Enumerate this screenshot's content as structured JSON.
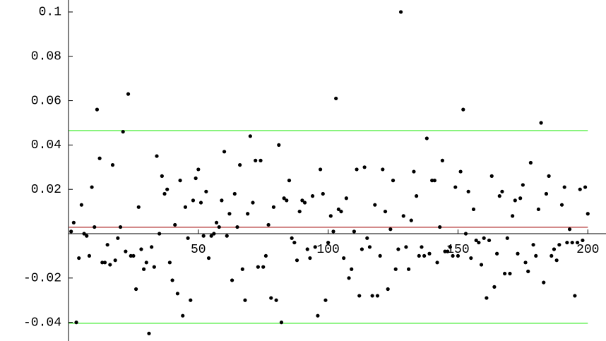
{
  "chart_data": {
    "type": "scatter",
    "x": [
      1,
      2,
      3,
      4,
      5,
      6,
      7,
      8,
      9,
      10,
      11,
      12,
      13,
      14,
      15,
      16,
      17,
      18,
      19,
      20,
      21,
      22,
      23,
      24,
      25,
      26,
      27,
      28,
      29,
      30,
      31,
      32,
      33,
      34,
      35,
      36,
      37,
      38,
      39,
      40,
      41,
      42,
      43,
      44,
      45,
      46,
      47,
      48,
      49,
      50,
      51,
      52,
      53,
      54,
      55,
      56,
      57,
      58,
      59,
      60,
      61,
      62,
      63,
      64,
      65,
      66,
      67,
      68,
      69,
      70,
      71,
      72,
      73,
      74,
      75,
      76,
      77,
      78,
      79,
      80,
      81,
      82,
      83,
      84,
      85,
      86,
      87,
      88,
      89,
      90,
      91,
      92,
      93,
      94,
      95,
      96,
      97,
      98,
      99,
      100,
      101,
      102,
      103,
      104,
      105,
      106,
      107,
      108,
      109,
      110,
      111,
      112,
      113,
      114,
      115,
      116,
      117,
      118,
      119,
      120,
      121,
      122,
      123,
      124,
      125,
      126,
      127,
      128,
      129,
      130,
      131,
      132,
      133,
      134,
      135,
      136,
      137,
      138,
      139,
      140,
      141,
      142,
      143,
      144,
      145,
      146,
      147,
      148,
      149,
      150,
      151,
      152,
      153,
      154,
      155,
      156,
      157,
      158,
      159,
      160,
      161,
      162,
      163,
      164,
      165,
      166,
      167,
      168,
      169,
      170,
      171,
      172,
      173,
      174,
      175,
      176,
      177,
      178,
      179,
      180,
      181,
      182,
      183,
      184,
      185,
      186,
      187,
      188,
      189,
      190,
      191,
      192,
      193,
      194,
      195,
      196,
      197,
      198,
      199,
      200
    ],
    "values": [
      0.001,
      0.005,
      -0.04,
      -0.011,
      0.013,
      0.0,
      -0.001,
      -0.01,
      0.021,
      0.003,
      0.056,
      0.034,
      -0.013,
      -0.013,
      -0.005,
      -0.014,
      0.031,
      -0.012,
      -0.002,
      0.003,
      0.046,
      -0.008,
      0.063,
      -0.01,
      -0.01,
      -0.025,
      0.012,
      -0.007,
      -0.016,
      -0.013,
      -0.045,
      -0.006,
      -0.015,
      0.035,
      0.0,
      0.026,
      0.018,
      0.02,
      -0.013,
      -0.021,
      0.004,
      -0.027,
      0.024,
      -0.037,
      0.012,
      -0.002,
      -0.03,
      0.015,
      0.025,
      0.029,
      0.014,
      -0.001,
      0.019,
      -0.011,
      -0.001,
      0.0,
      0.005,
      0.003,
      0.015,
      0.037,
      -0.001,
      0.009,
      -0.021,
      0.018,
      0.003,
      0.031,
      -0.016,
      -0.03,
      0.009,
      0.044,
      0.014,
      0.033,
      -0.015,
      0.033,
      -0.015,
      -0.01,
      0.004,
      -0.029,
      0.012,
      -0.03,
      0.04,
      -0.04,
      0.016,
      0.015,
      0.024,
      -0.002,
      -0.004,
      -0.012,
      0.01,
      0.015,
      0.014,
      -0.007,
      -0.011,
      0.017,
      -0.006,
      -0.037,
      0.029,
      0.018,
      -0.03,
      -0.004,
      0.008,
      0.001,
      0.061,
      0.011,
      0.01,
      -0.011,
      0.016,
      -0.02,
      -0.016,
      0.001,
      0.029,
      -0.028,
      -0.007,
      0.03,
      -0.002,
      -0.006,
      -0.028,
      0.013,
      -0.028,
      -0.01,
      0.029,
      0.01,
      -0.025,
      0.002,
      0.024,
      -0.016,
      -0.007,
      0.1,
      0.008,
      -0.006,
      -0.016,
      0.006,
      0.028,
      0.017,
      -0.01,
      -0.006,
      -0.01,
      0.043,
      -0.009,
      0.024,
      0.024,
      -0.013,
      0.003,
      0.033,
      -0.008,
      -0.008,
      -0.006,
      -0.01,
      0.021,
      -0.01,
      0.028,
      0.056,
      0.0,
      0.019,
      -0.011,
      0.011,
      -0.003,
      -0.004,
      -0.014,
      -0.002,
      -0.029,
      -0.003,
      0.026,
      -0.024,
      -0.009,
      0.017,
      0.019,
      -0.018,
      -0.002,
      -0.018,
      0.008,
      0.015,
      -0.009,
      0.016,
      0.022,
      -0.013,
      -0.017,
      0.032,
      -0.005,
      -0.01,
      0.011,
      0.05,
      -0.022,
      0.018,
      0.026,
      -0.01,
      -0.007,
      -0.012,
      -0.005,
      0.013,
      0.021,
      -0.004,
      0.002,
      -0.004,
      -0.028,
      -0.004,
      0.02,
      -0.003,
      0.021,
      0.009
    ],
    "color": "#000000",
    "reference_lines": [
      {
        "value": 0.0465,
        "color": "#44ee33"
      },
      {
        "value": 0.0029,
        "color": "#b03030"
      },
      {
        "value": -0.0404,
        "color": "#44ee33"
      }
    ],
    "xlim": [
      0,
      207
    ],
    "ylim": [
      -0.0484,
      0.1054
    ],
    "xticks": [
      50,
      100,
      150,
      200
    ],
    "yticks": [
      -0.04,
      -0.02,
      0.02,
      0.04,
      0.06,
      0.08,
      0.1
    ]
  }
}
